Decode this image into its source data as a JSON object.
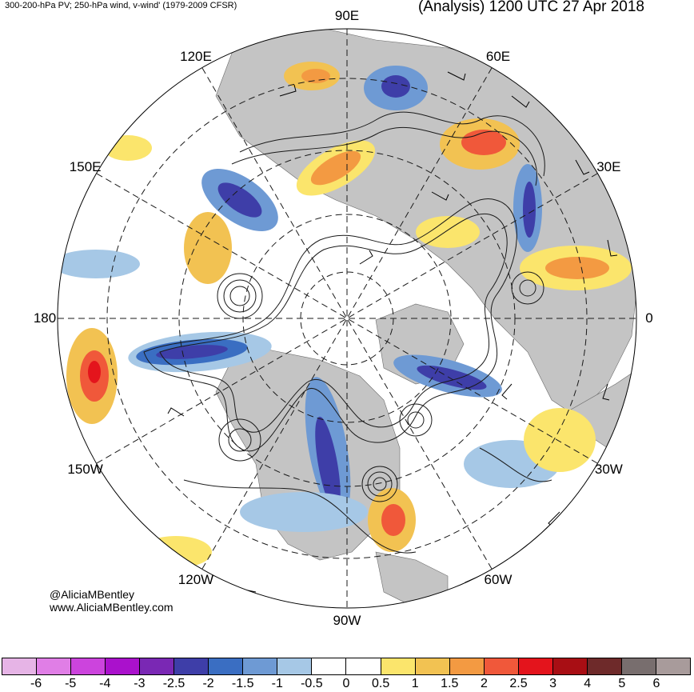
{
  "header": {
    "left_title": "300-200-hPa PV; 250-hPa wind, v-wind' (1979-2009 CFSR)",
    "right_title": "(Analysis) 1200 UTC 27 Apr 2018"
  },
  "map": {
    "projection": "north-polar-stereographic",
    "longitude_labels": [
      {
        "text": "90E",
        "deg": 90
      },
      {
        "text": "60E",
        "deg": 60
      },
      {
        "text": "30E",
        "deg": 30
      },
      {
        "text": "0",
        "deg": 0
      },
      {
        "text": "30W",
        "deg": -30
      },
      {
        "text": "60W",
        "deg": -60
      },
      {
        "text": "90W",
        "deg": -90
      },
      {
        "text": "120W",
        "deg": -120
      },
      {
        "text": "150W",
        "deg": -150
      },
      {
        "text": "180",
        "deg": 180
      },
      {
        "text": "150E",
        "deg": 150
      },
      {
        "text": "120E",
        "deg": 120
      }
    ],
    "latitude_circles_deg": [
      20,
      40,
      60,
      80
    ],
    "land_color": "#c4c4c4",
    "ocean_color": "#ffffff"
  },
  "credits": {
    "handle": "@AliciaMBentley",
    "website": "www.AliciaMBentley.com"
  },
  "colorbar": {
    "colors": [
      "#e6b4e6",
      "#e07ee6",
      "#cc44dd",
      "#aa11cc",
      "#7a28b4",
      "#3e3ea8",
      "#3a6ec2",
      "#6e9ad4",
      "#a6c8e6",
      "#ffffff",
      "#ffffff",
      "#fbe56c",
      "#f2c252",
      "#f39a42",
      "#f0583a",
      "#e4141c",
      "#a80e14",
      "#6e2a2a",
      "#786e6e",
      "#a89b9b"
    ],
    "ticks": [
      "-6",
      "-5",
      "-4",
      "-3",
      "-2.5",
      "-2",
      "-1.5",
      "-1",
      "-0.5",
      "0",
      "0.5",
      "1",
      "1.5",
      "2",
      "2.5",
      "3",
      "4",
      "5",
      "6"
    ]
  }
}
